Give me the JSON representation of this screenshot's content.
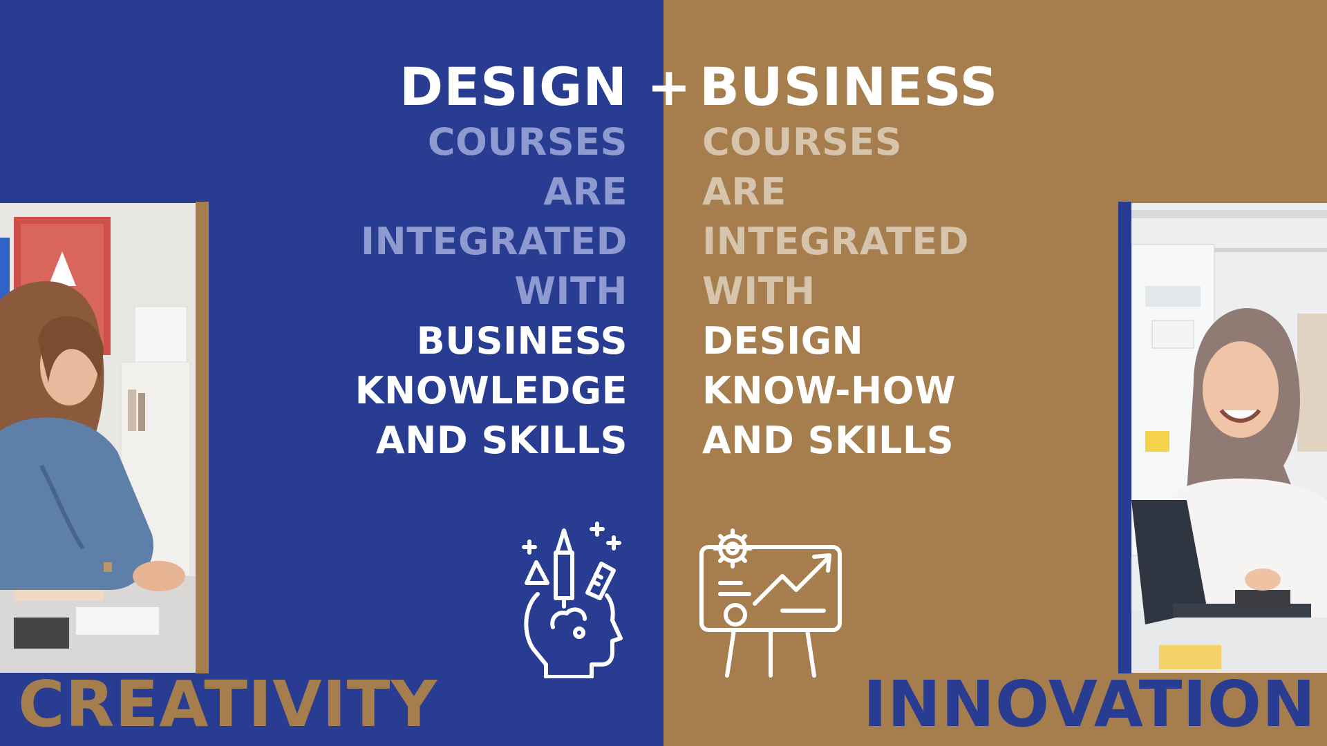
{
  "colors": {
    "blue": "#283d91",
    "gold": "#a67d4d"
  },
  "title": {
    "left": "DESIGN",
    "plus": "+",
    "right": "BUSINESS"
  },
  "left_column": {
    "muted": [
      "COURSES",
      "ARE",
      "INTEGRATED",
      "WITH"
    ],
    "bright": [
      "BUSINESS",
      "KNOWLEDGE",
      "AND SKILLS"
    ]
  },
  "right_column": {
    "muted": [
      "COURSES",
      "ARE",
      "INTEGRATED",
      "WITH"
    ],
    "bright": [
      "DESIGN",
      "KNOW-HOW",
      "AND SKILLS"
    ]
  },
  "bottom": {
    "left": "CREATIVITY",
    "right": "INNOVATION"
  },
  "icons": {
    "left": "creative-mind-icon",
    "right": "growth-presentation-icon"
  }
}
